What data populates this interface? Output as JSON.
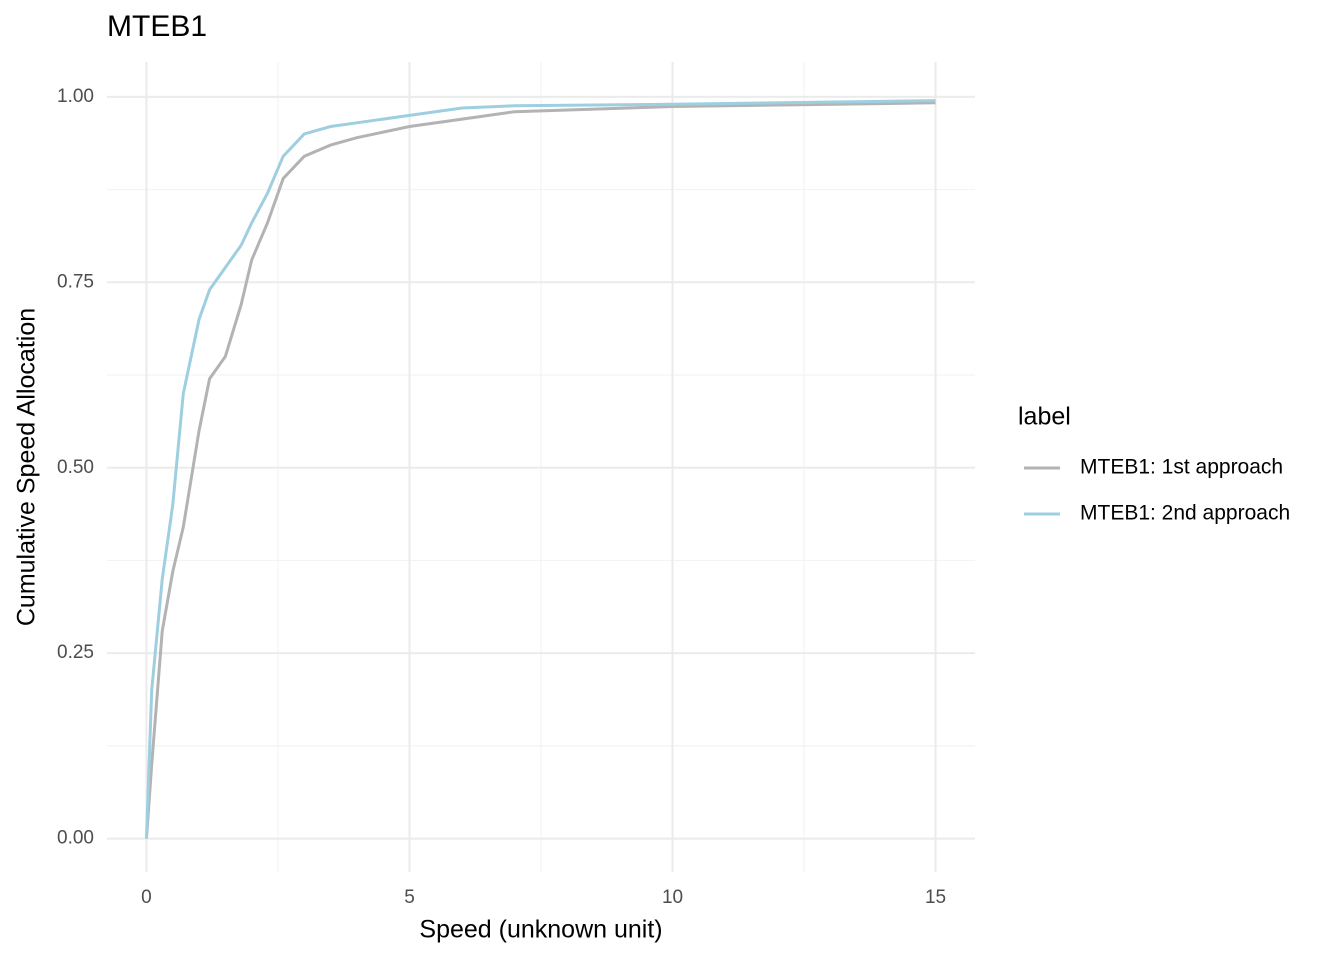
{
  "chart_data": {
    "type": "line",
    "title": "MTEB1",
    "x_label": "Speed (unknown unit)",
    "y_label": "Cumulative Speed Allocation",
    "legend_title": "label",
    "legend_position": "right",
    "grid": true,
    "xlim": [
      -0.75,
      15.75
    ],
    "ylim": [
      -0.045,
      1.047
    ],
    "xticks": [
      0,
      5,
      10,
      15
    ],
    "yticks": [
      {
        "value": 0,
        "label": "0.00"
      },
      {
        "value": 0.25,
        "label": "0.25"
      },
      {
        "value": 0.5,
        "label": "0.50"
      },
      {
        "value": 0.75,
        "label": "0.75"
      },
      {
        "value": 1,
        "label": "1.00"
      }
    ],
    "x_minor_grid": [
      2.5,
      7.5,
      12.5
    ],
    "y_minor_grid": [
      0.125,
      0.375,
      0.625,
      0.875
    ],
    "x": [
      0,
      0.1,
      0.3,
      0.5,
      0.7,
      1.0,
      1.2,
      1.5,
      1.8,
      2.0,
      2.3,
      2.6,
      3.0,
      3.5,
      4.0,
      5.0,
      6.0,
      7.0,
      10.0,
      15.0
    ],
    "series": [
      {
        "name": "MTEB1: 1st approach",
        "color": "#b3b3b3",
        "values": [
          0,
          0.1,
          0.28,
          0.36,
          0.42,
          0.55,
          0.62,
          0.65,
          0.72,
          0.78,
          0.83,
          0.89,
          0.92,
          0.935,
          0.945,
          0.96,
          0.97,
          0.98,
          0.987,
          0.992
        ]
      },
      {
        "name": "MTEB1: 2nd approach",
        "color": "#9ecfe0",
        "values": [
          0,
          0.2,
          0.35,
          0.45,
          0.6,
          0.7,
          0.74,
          0.77,
          0.8,
          0.83,
          0.87,
          0.92,
          0.95,
          0.96,
          0.965,
          0.975,
          0.985,
          0.988,
          0.99,
          0.995
        ]
      }
    ]
  }
}
